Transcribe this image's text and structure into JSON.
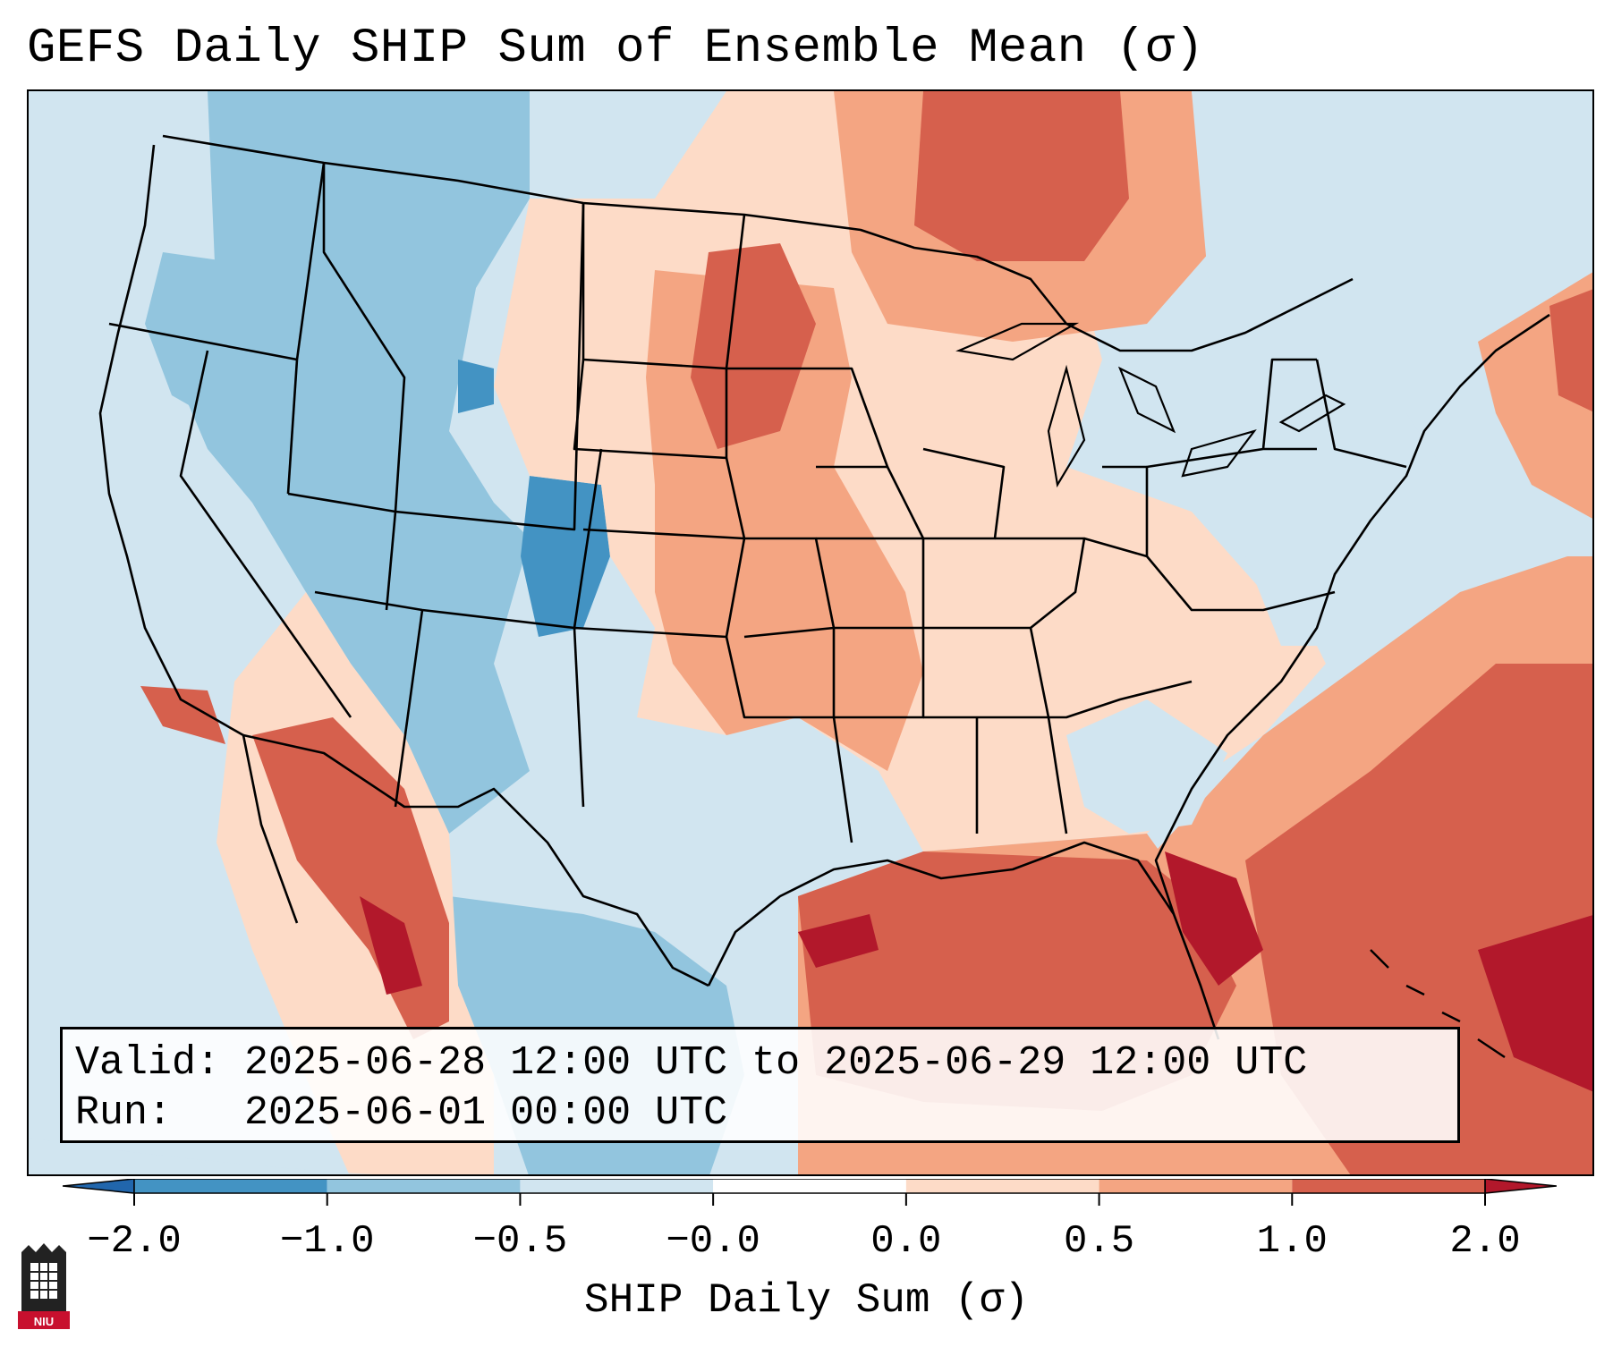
{
  "title": "GEFS Daily SHIP Sum of Ensemble Mean (σ)",
  "info": {
    "valid_label": "Valid:",
    "valid_value": "2025-06-28 12:00 UTC to 2025-06-29 12:00 UTC",
    "run_label": "Run:",
    "run_value": "2025-06-01 00:00 UTC"
  },
  "colorbar": {
    "label": "SHIP Daily Sum (σ)",
    "ticks": [
      "−2.0",
      "−1.0",
      "−0.5",
      "−0.0",
      "0.0",
      "0.5",
      "1.0",
      "2.0"
    ],
    "colors": [
      "#4393c3",
      "#92c5de",
      "#d1e5f0",
      "#ffffff",
      "#fddbc7",
      "#f4a582",
      "#d6604d",
      "#b2182b"
    ],
    "under_color": "#2166ac",
    "over_color": "#b2182b"
  },
  "logo": {
    "text": "NIU",
    "icon": "niu-castle-logo"
  }
}
